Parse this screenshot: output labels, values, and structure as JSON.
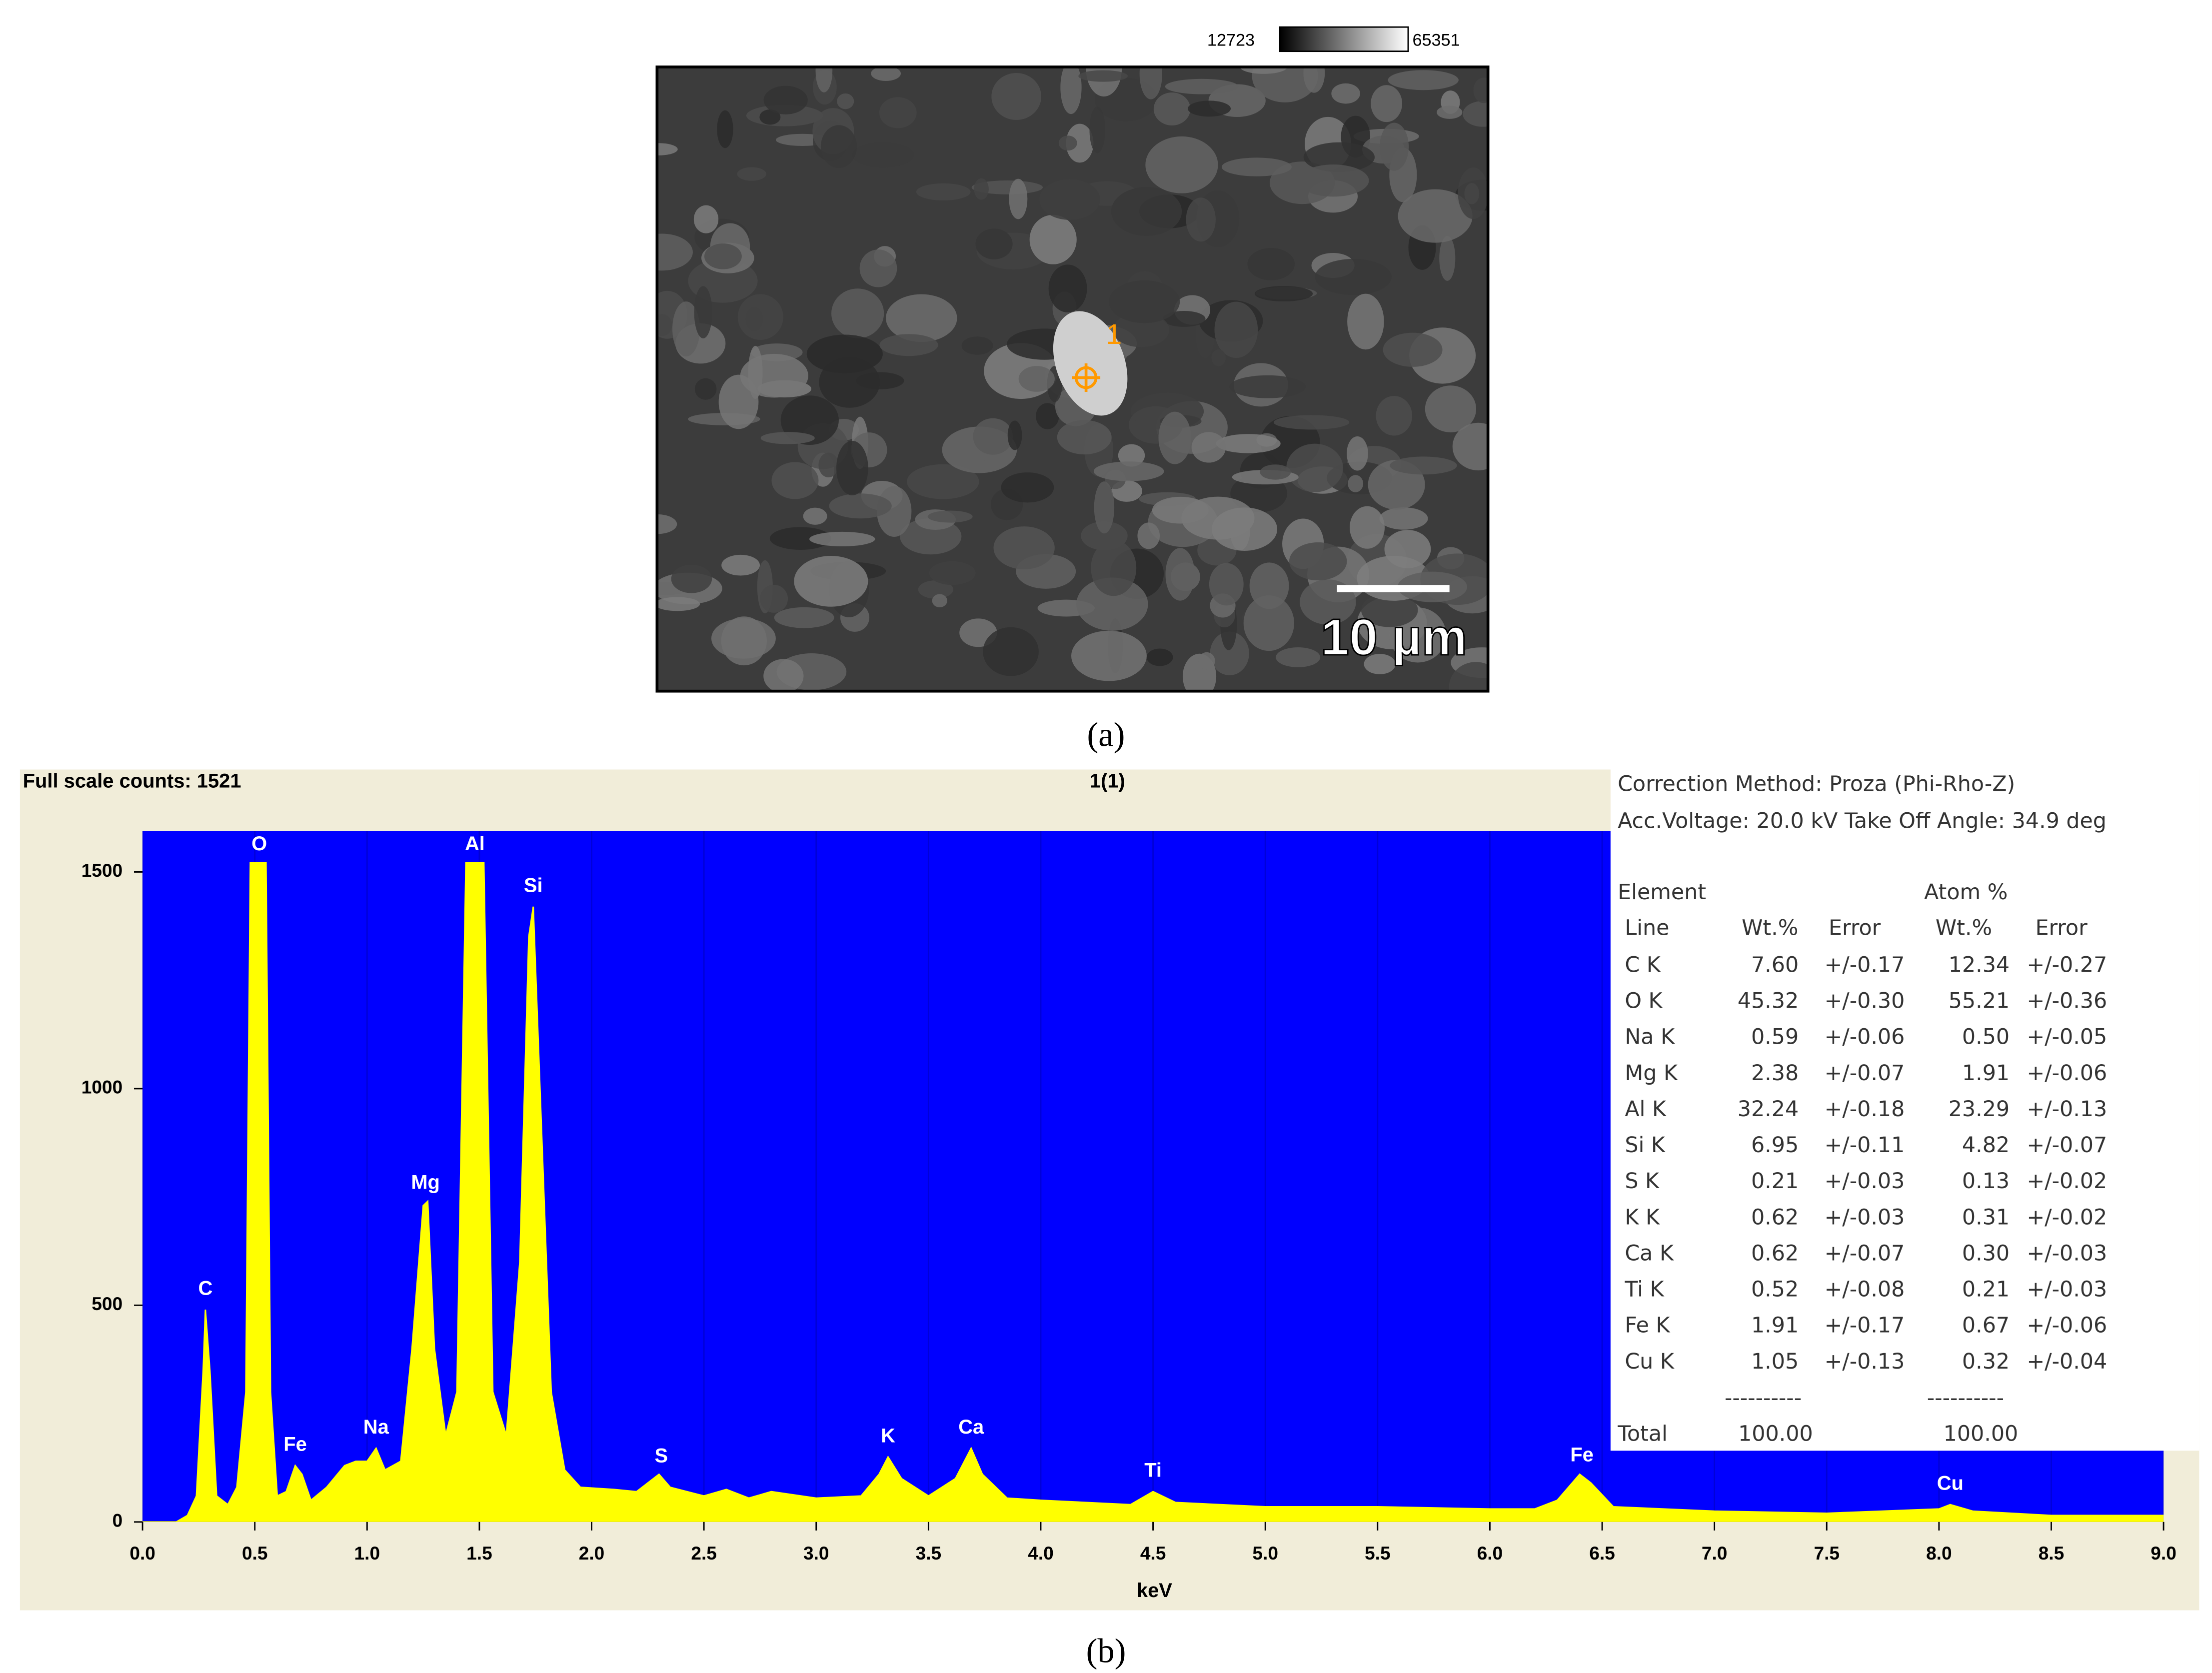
{
  "chart_data": {
    "type": "area",
    "title": "1(1)",
    "subtitle": "Full scale counts: 1521",
    "x_label": "keV",
    "x": [
      0.0,
      0.15,
      0.2,
      0.24,
      0.27,
      0.28,
      0.3,
      0.33,
      0.38,
      0.42,
      0.46,
      0.48,
      0.55,
      0.57,
      0.6,
      0.64,
      0.68,
      0.71,
      0.75,
      0.82,
      0.9,
      0.95,
      1.0,
      1.04,
      1.08,
      1.15,
      1.2,
      1.25,
      1.27,
      1.3,
      1.35,
      1.4,
      1.44,
      1.52,
      1.56,
      1.62,
      1.68,
      1.72,
      1.74,
      1.77,
      1.82,
      1.88,
      1.95,
      2.1,
      2.2,
      2.3,
      2.35,
      2.5,
      2.6,
      2.7,
      2.8,
      3.0,
      3.2,
      3.28,
      3.32,
      3.38,
      3.5,
      3.62,
      3.69,
      3.74,
      3.85,
      4.0,
      4.2,
      4.4,
      4.5,
      4.6,
      5.0,
      5.5,
      6.0,
      6.2,
      6.3,
      6.4,
      6.45,
      6.55,
      7.0,
      7.5,
      8.0,
      8.05,
      8.15,
      8.5,
      9.0
    ],
    "series": [
      {
        "color": "#ffff00",
        "values": [
          0,
          0,
          15,
          60,
          350,
          490,
          350,
          60,
          40,
          80,
          300,
          1521,
          1521,
          300,
          60,
          70,
          130,
          110,
          50,
          80,
          130,
          140,
          140,
          170,
          120,
          140,
          400,
          730,
          740,
          400,
          200,
          300,
          1521,
          1521,
          300,
          200,
          600,
          1350,
          1420,
          1000,
          300,
          120,
          80,
          75,
          70,
          110,
          80,
          60,
          75,
          55,
          70,
          55,
          60,
          110,
          150,
          100,
          60,
          100,
          170,
          110,
          55,
          50,
          45,
          40,
          70,
          45,
          35,
          35,
          30,
          30,
          50,
          110,
          90,
          35,
          25,
          20,
          30,
          40,
          25,
          15,
          15
        ]
      }
    ],
    "annotations": [
      {
        "text": "C",
        "x": 0.28
      },
      {
        "text": "O",
        "x": 0.52
      },
      {
        "text": "Fe",
        "x": 0.68
      },
      {
        "text": "Na",
        "x": 1.04
      },
      {
        "text": "Mg",
        "x": 1.26
      },
      {
        "text": "Al",
        "x": 1.48
      },
      {
        "text": "Si",
        "x": 1.74
      },
      {
        "text": "S",
        "x": 2.31
      },
      {
        "text": "K",
        "x": 3.32
      },
      {
        "text": "Ca",
        "x": 3.69
      },
      {
        "text": "Ti",
        "x": 4.5
      },
      {
        "text": "Fe",
        "x": 6.41
      },
      {
        "text": "Cu",
        "x": 8.05
      }
    ],
    "background": "#0000ff",
    "grid": true,
    "xlim": [
      0,
      9
    ],
    "ylim": [
      0,
      1595
    ],
    "xticks": [
      {
        "value": 0,
        "label": "0.0"
      },
      0.5,
      {
        "value": 1,
        "label": "1.0"
      },
      1.5,
      {
        "value": 2,
        "label": "2.0"
      },
      2.5,
      {
        "value": 3,
        "label": "3.0"
      },
      3.5,
      {
        "value": 4,
        "label": "4.0"
      },
      4.5,
      {
        "value": 5,
        "label": "5.0"
      },
      5.5,
      {
        "value": 6,
        "label": "6.0"
      },
      6.5,
      {
        "value": 7,
        "label": "7.0"
      },
      7.5,
      {
        "value": 8,
        "label": "8.0"
      },
      8.5,
      {
        "value": 9,
        "label": "9.0"
      }
    ],
    "yticks": [
      0,
      500,
      1000,
      1500
    ]
  },
  "eds_table": {
    "correction": "Correction Method:  Proza (Phi-Rho-Z)",
    "voltage": "Acc.Voltage: 20.0 kV  Take Off Angle: 34.9 deg",
    "group_headers": [
      "Element",
      "Atom %"
    ],
    "headers": [
      "Line",
      "Wt.%",
      "Error",
      "Wt.%",
      "Error"
    ],
    "rows": [
      [
        "C K",
        "7.60",
        "+/-0.17",
        "12.34",
        "+/-0.27"
      ],
      [
        "O K",
        "45.32",
        "+/-0.30",
        "55.21",
        "+/-0.36"
      ],
      [
        "Na K",
        "0.59",
        "+/-0.06",
        "0.50",
        "+/-0.05"
      ],
      [
        "Mg K",
        "2.38",
        "+/-0.07",
        "1.91",
        "+/-0.06"
      ],
      [
        "Al K",
        "32.24",
        "+/-0.18",
        "23.29",
        "+/-0.13"
      ],
      [
        "Si K",
        "6.95",
        "+/-0.11",
        "4.82",
        "+/-0.07"
      ],
      [
        "S K",
        "0.21",
        "+/-0.03",
        "0.13",
        "+/-0.02"
      ],
      [
        "K K",
        "0.62",
        "+/-0.03",
        "0.31",
        "+/-0.02"
      ],
      [
        "Ca K",
        "0.62",
        "+/-0.07",
        "0.30",
        "+/-0.03"
      ],
      [
        "Ti K",
        "0.52",
        "+/-0.08",
        "0.21",
        "+/-0.03"
      ],
      [
        "Fe K",
        "1.91",
        "+/-0.17",
        "0.67",
        "+/-0.06"
      ],
      [
        "Cu K",
        "1.05",
        "+/-0.13",
        "0.32",
        "+/-0.04"
      ]
    ],
    "separators": [
      "----------",
      "----------"
    ],
    "total": [
      "Total",
      "100.00",
      "100.00"
    ]
  },
  "sem": {
    "colorbar_min": "12723",
    "colorbar_max": "65351",
    "marker": "1",
    "scale_bar": "10 µm"
  },
  "captions": [
    "(a)",
    "(b)"
  ]
}
